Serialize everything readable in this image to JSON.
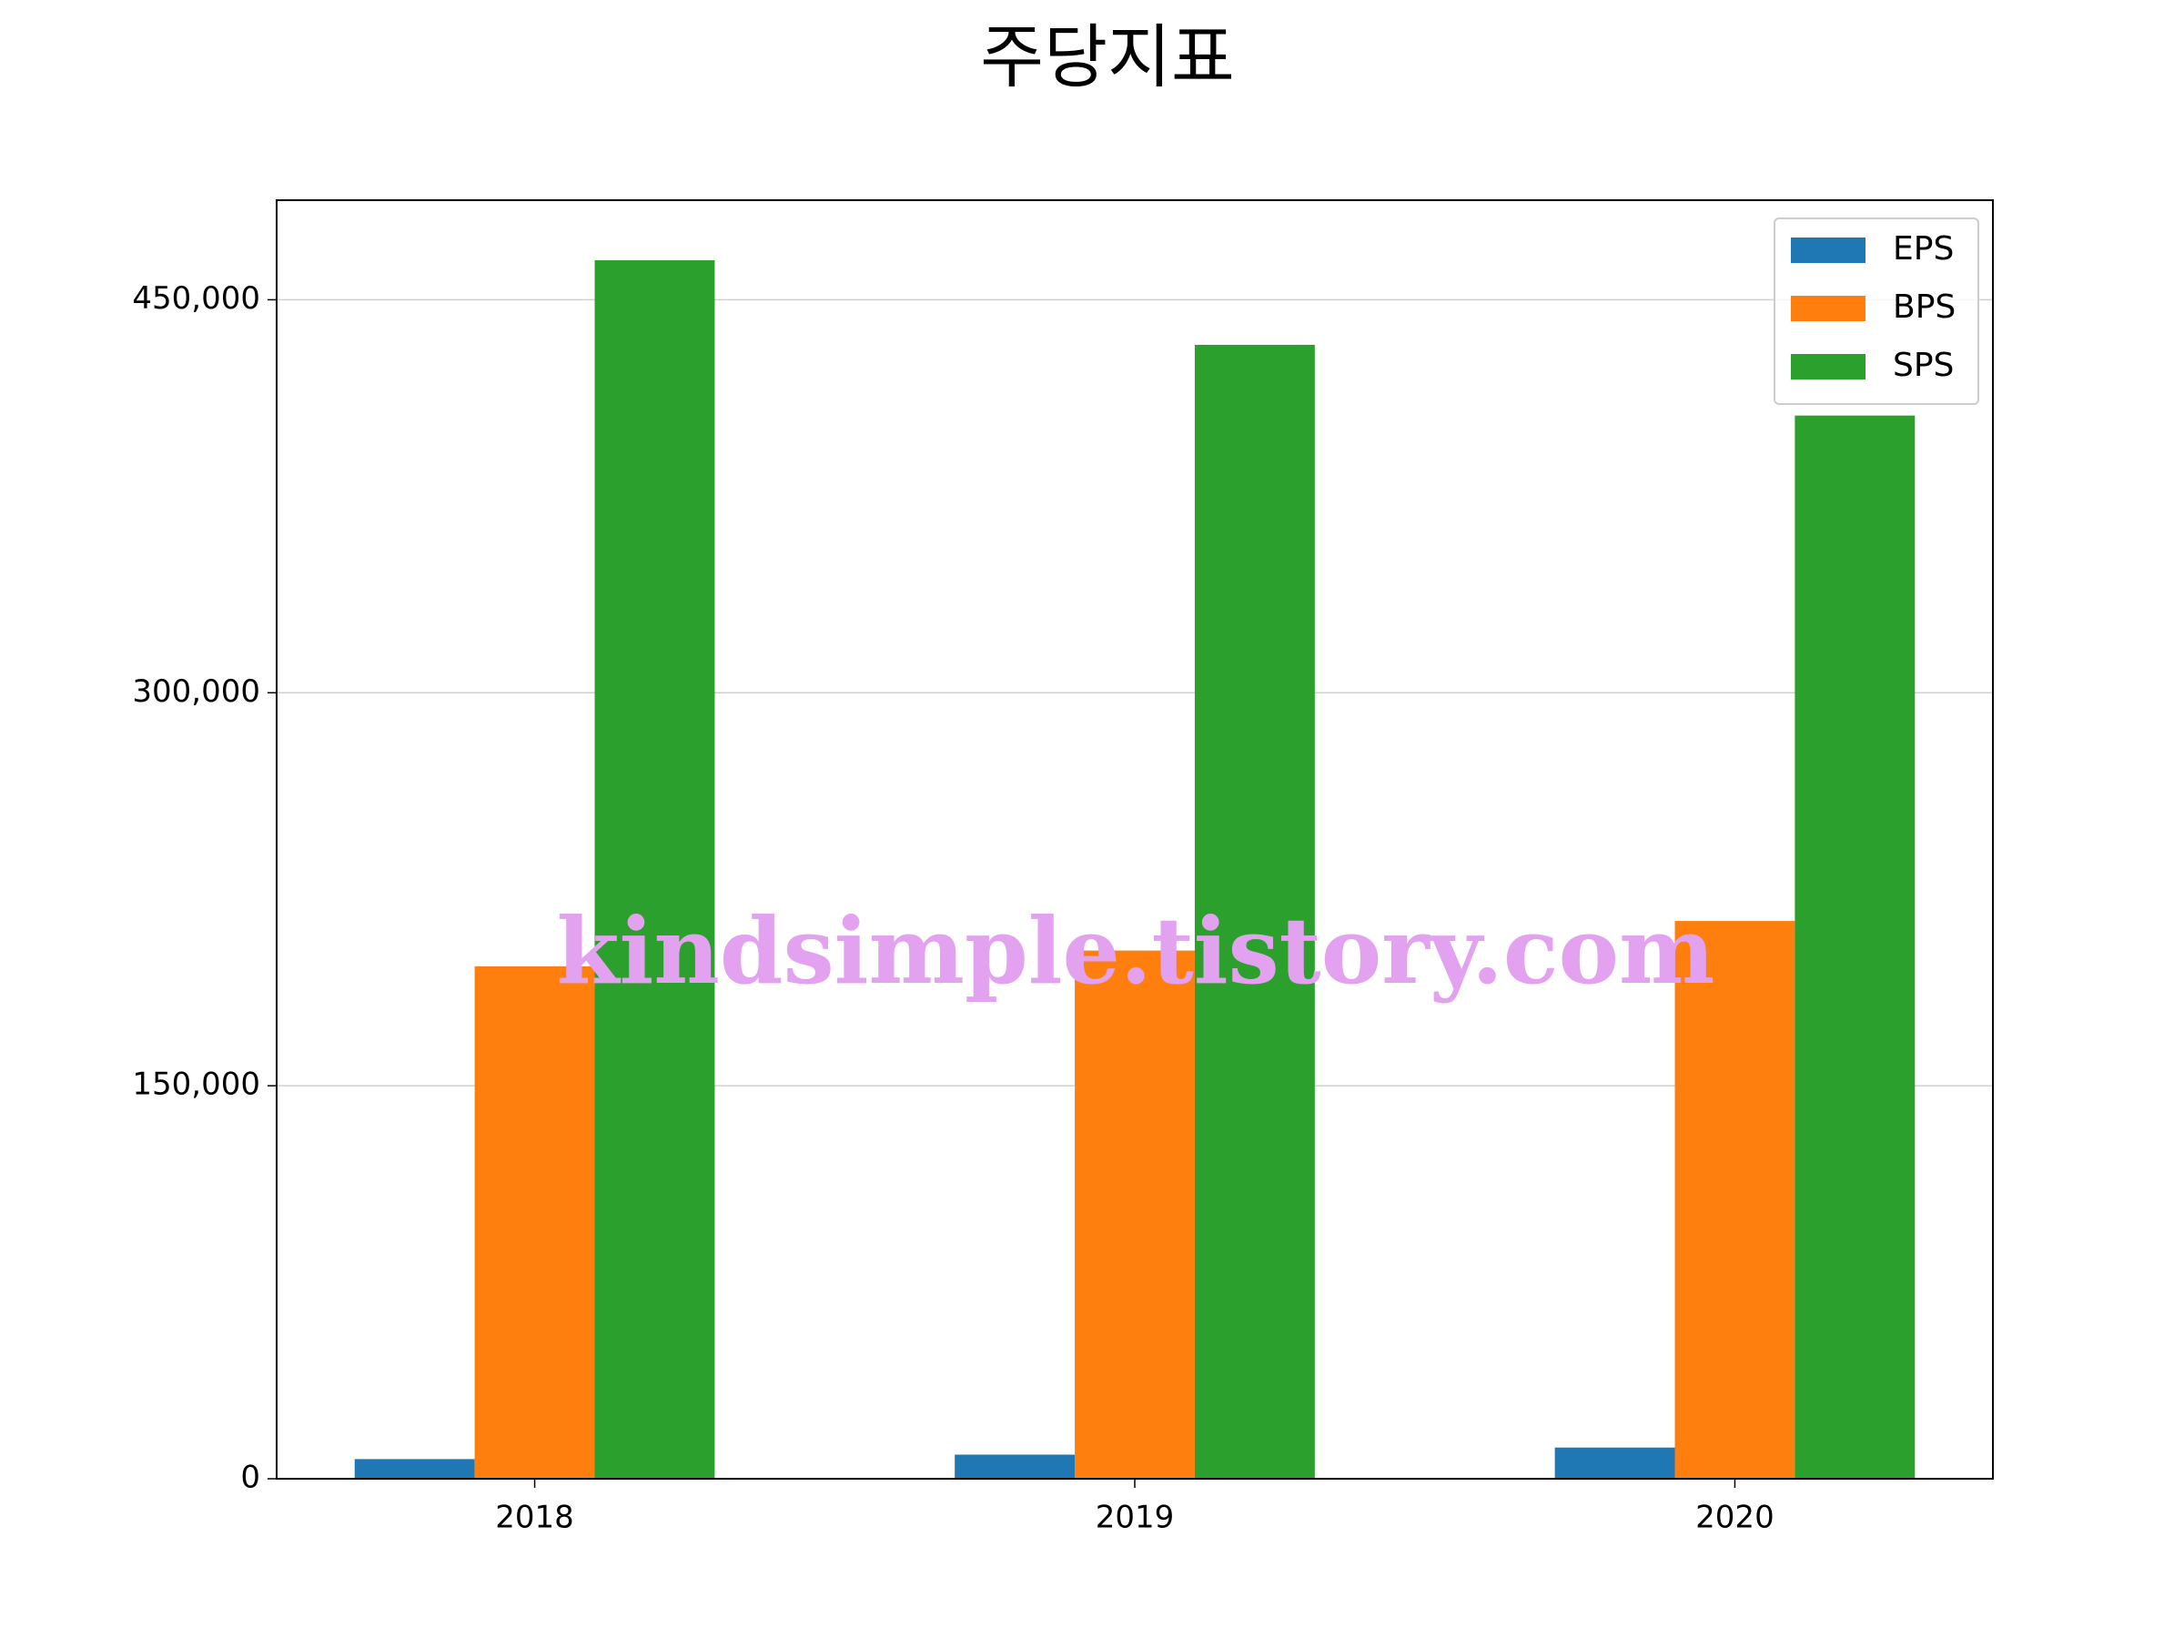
{
  "chart_data": {
    "type": "bar",
    "title": "주당지표",
    "categories": [
      "2018",
      "2019",
      "2020"
    ],
    "series": [
      {
        "name": "EPS",
        "color": "#1f77b4",
        "values": [
          7500,
          9200,
          11900
        ]
      },
      {
        "name": "BPS",
        "color": "#ff7f0e",
        "values": [
          195600,
          201600,
          212900
        ]
      },
      {
        "name": "SPS",
        "color": "#2ca02c",
        "values": [
          465100,
          432800,
          405800
        ]
      }
    ],
    "ylim": [
      0,
      488000
    ],
    "yticks": [
      0,
      {
        "value": 150000,
        "label": "150,000"
      },
      {
        "value": 300000,
        "label": "300,000"
      },
      {
        "value": 450000,
        "label": "450,000"
      }
    ],
    "grid": true,
    "legend": "upper right",
    "watermark": "kindsimple.tistory.com"
  }
}
